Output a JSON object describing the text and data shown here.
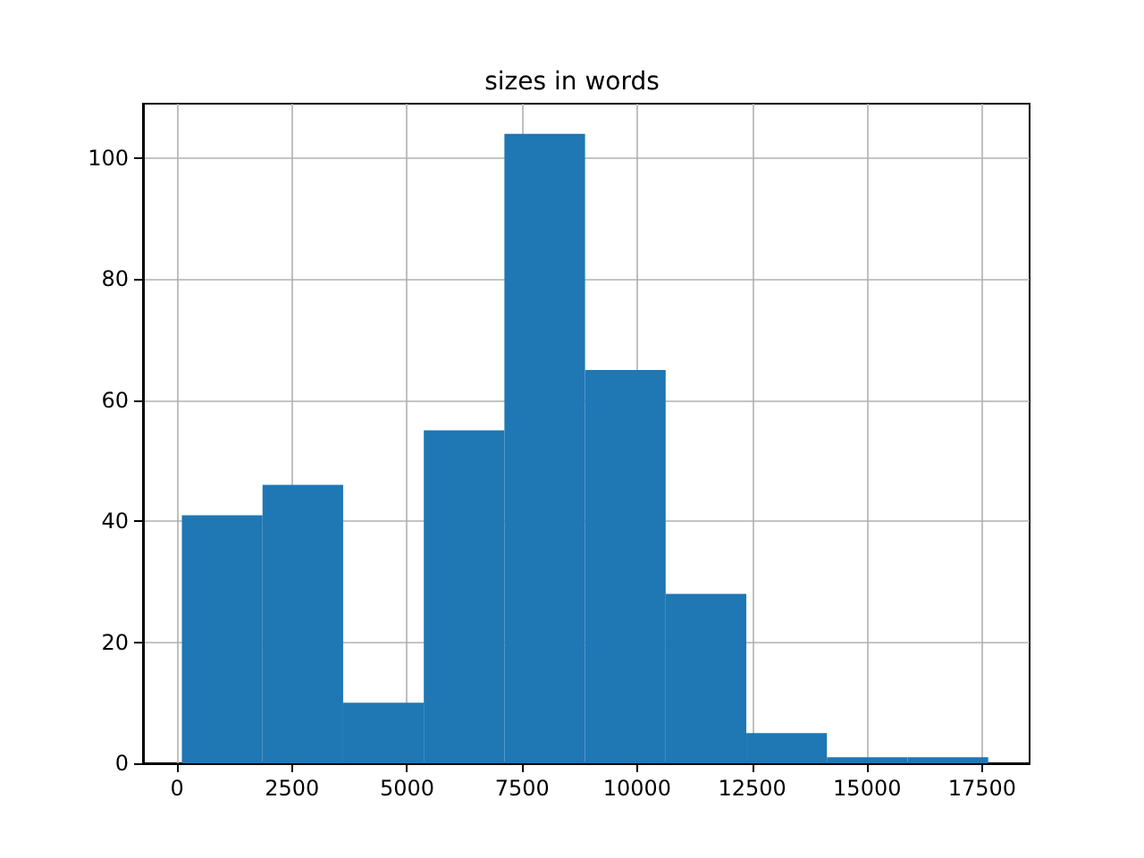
{
  "chart_data": {
    "type": "histogram",
    "title": "sizes in words",
    "bins": [
      105,
      1858,
      3610,
      5363,
      7115,
      8868,
      10620,
      12373,
      14125,
      15878,
      17630
    ],
    "values": [
      41,
      46,
      10,
      55,
      104,
      65,
      28,
      5,
      1,
      1
    ],
    "color": "#1f77b4",
    "xlim": [
      -740,
      18530
    ],
    "xticks": [
      0,
      2500,
      5000,
      7500,
      10000,
      12500,
      15000,
      17500
    ],
    "ylim": [
      0,
      109
    ],
    "yticks": [
      0,
      20,
      40,
      60,
      80,
      100
    ],
    "grid": true
  }
}
